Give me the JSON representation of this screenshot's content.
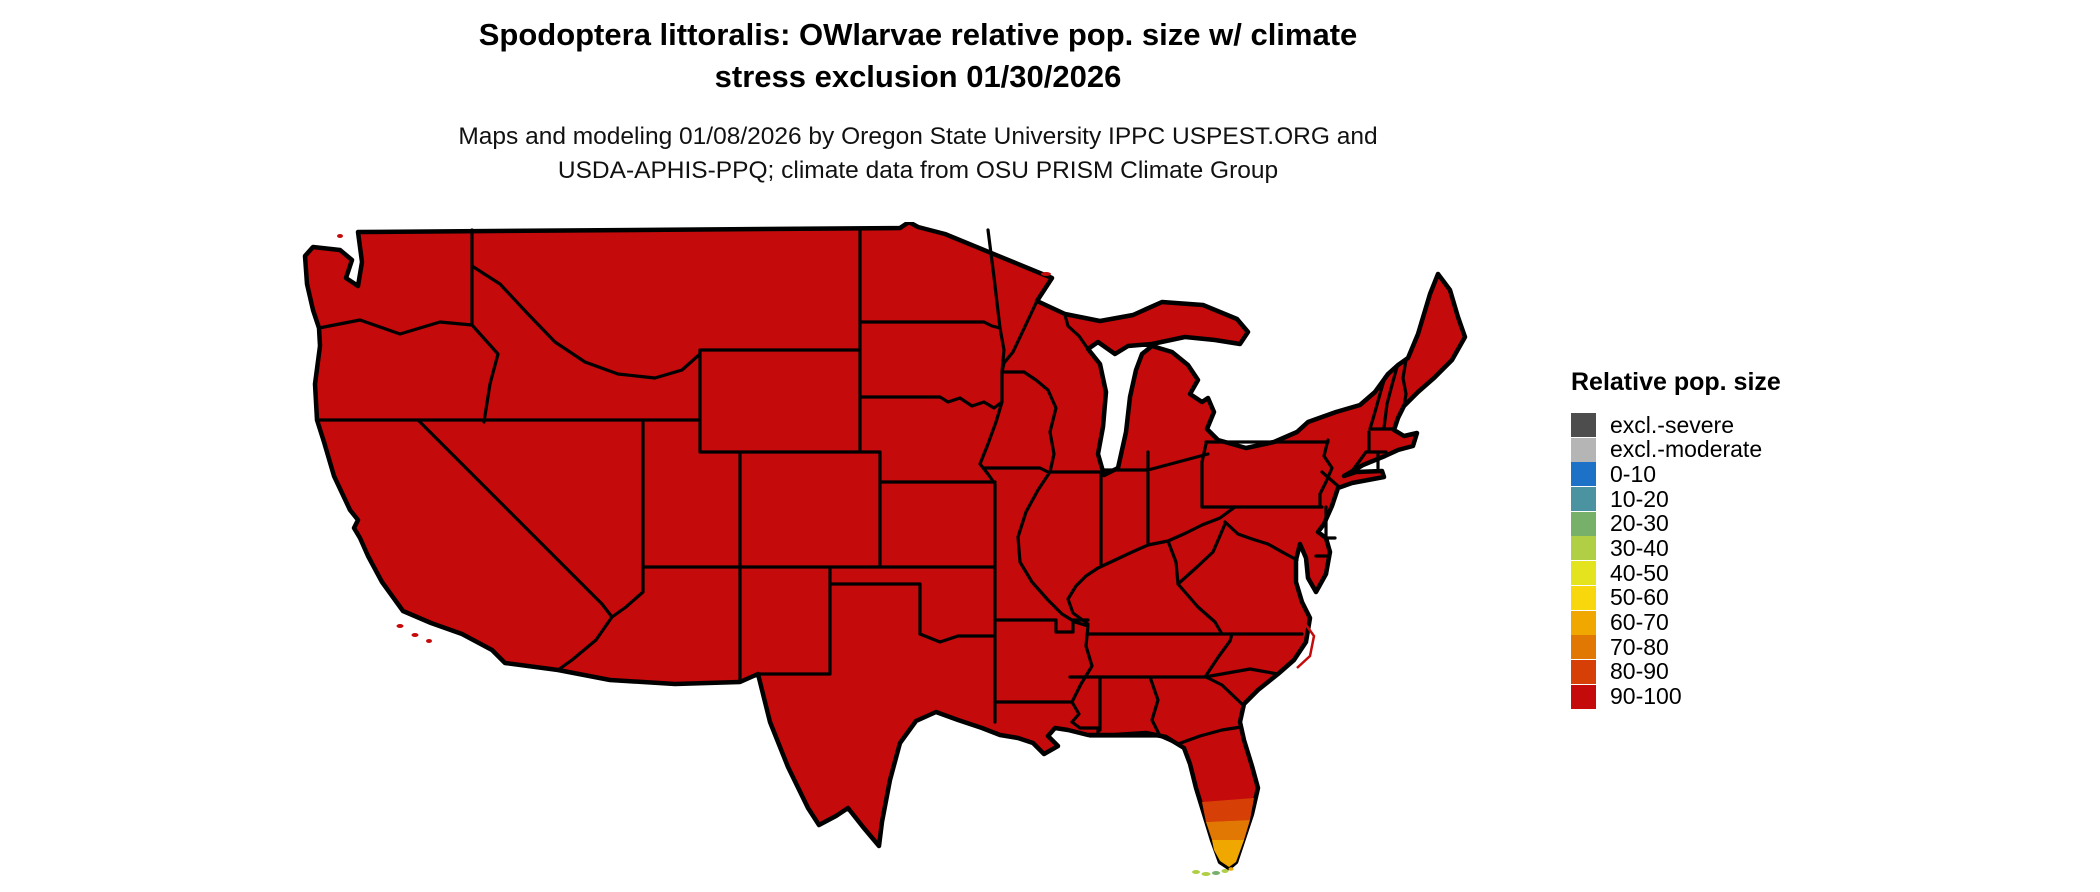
{
  "header": {
    "title_line1": "Spodoptera littoralis: OWlarvae relative pop. size w/ climate",
    "title_line2": "stress exclusion 01/30/2026",
    "subtitle_line1": "Maps and modeling 01/08/2026 by Oregon State University IPPC USPEST.ORG and",
    "subtitle_line2": "USDA-APHIS-PPQ; climate data from OSU PRISM Climate Group"
  },
  "legend": {
    "title": "Relative pop. size",
    "items": [
      {
        "label": "excl.-severe",
        "color": "#4d4d4d"
      },
      {
        "label": "excl.-moderate",
        "color": "#b5b5b5"
      },
      {
        "label": "0-10",
        "color": "#1d72c8"
      },
      {
        "label": "10-20",
        "color": "#4b93a1"
      },
      {
        "label": "20-30",
        "color": "#77b069"
      },
      {
        "label": "30-40",
        "color": "#b0cf45"
      },
      {
        "label": "40-50",
        "color": "#e4e41e"
      },
      {
        "label": "50-60",
        "color": "#f8d70c"
      },
      {
        "label": "60-70",
        "color": "#f0a800"
      },
      {
        "label": "70-80",
        "color": "#e27804"
      },
      {
        "label": "80-90",
        "color": "#d64006"
      },
      {
        "label": "90-100",
        "color": "#c40a0a"
      }
    ]
  },
  "map": {
    "region": "Continental United States",
    "dominant_class": "90-100",
    "border_color": "#000000",
    "exceptions": [
      {
        "region": "South Florida peninsula tip",
        "classes": [
          "80-90",
          "70-80",
          "60-70"
        ]
      },
      {
        "region": "Florida Keys",
        "classes": [
          "30-40",
          "20-30"
        ]
      }
    ]
  }
}
